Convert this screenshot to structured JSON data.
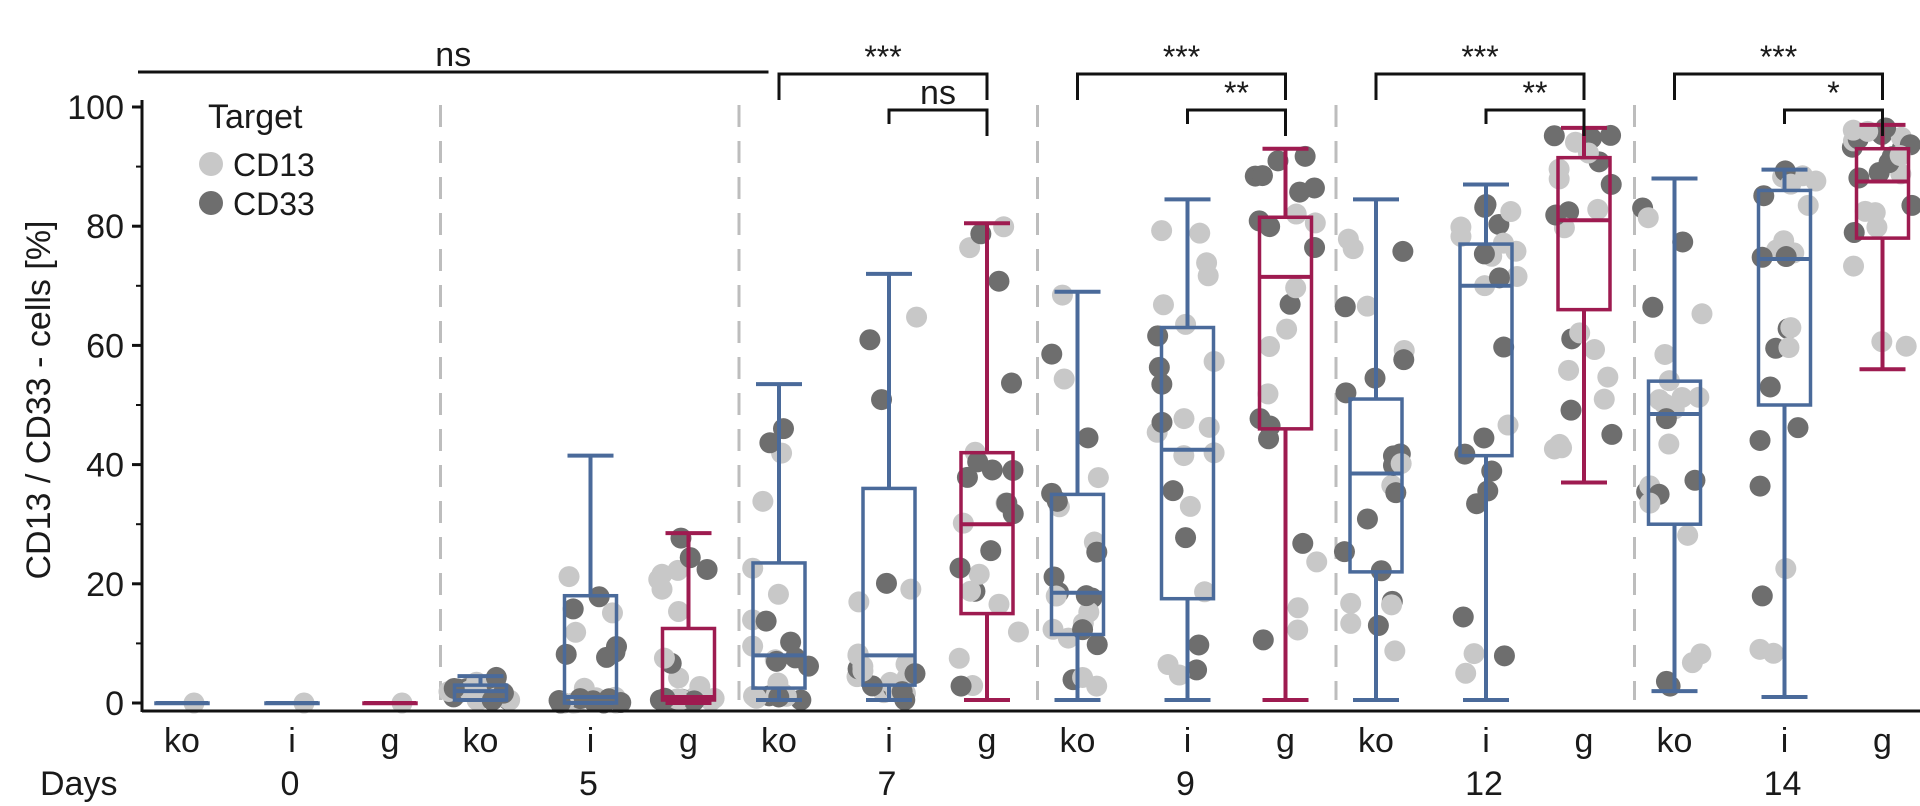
{
  "chart_data": {
    "type": "box",
    "ylabel": "CD13 / CD33 - cells [%]",
    "xgroup_label": "Days",
    "ylim": [
      0,
      100
    ],
    "yticks": [
      0,
      20,
      40,
      60,
      80,
      100
    ],
    "conditions": [
      "ko",
      "i",
      "g"
    ],
    "colors": {
      "ko": "#4a6a9a",
      "i": "#4a6a9a",
      "g": "#9e1b50"
    },
    "legend": {
      "title": "Target",
      "position": "top-left",
      "entries": [
        {
          "label": "CD13",
          "color": "#c8c8c8"
        },
        {
          "label": "CD33",
          "color": "#6e6e6e"
        }
      ]
    },
    "groups": [
      {
        "day": "0",
        "boxes": [
          {
            "cond": "ko",
            "min": 0,
            "q1": 0,
            "median": 0,
            "q3": 0,
            "max": 0
          },
          {
            "cond": "i",
            "min": 0,
            "q1": 0,
            "median": 0,
            "q3": 0,
            "max": 0
          },
          {
            "cond": "g",
            "min": 0,
            "q1": 0,
            "median": 0,
            "q3": 0,
            "max": 0
          }
        ]
      },
      {
        "day": "5",
        "boxes": [
          {
            "cond": "ko",
            "min": 0.5,
            "q1": 0.5,
            "median": 2,
            "q3": 3,
            "max": 4.5
          },
          {
            "cond": "i",
            "min": 0,
            "q1": 0,
            "median": 1,
            "q3": 18,
            "max": 41.5
          },
          {
            "cond": "g",
            "min": 0,
            "q1": 0.5,
            "median": 1,
            "q3": 12.5,
            "max": 28.5
          }
        ]
      },
      {
        "day": "7",
        "boxes": [
          {
            "cond": "ko",
            "min": 0.5,
            "q1": 2.5,
            "median": 8,
            "q3": 23.5,
            "max": 53.5
          },
          {
            "cond": "i",
            "min": 0.5,
            "q1": 3,
            "median": 8,
            "q3": 36,
            "max": 72
          },
          {
            "cond": "g",
            "min": 0.5,
            "q1": 15,
            "median": 30,
            "q3": 42,
            "max": 80.5
          }
        ]
      },
      {
        "day": "9",
        "boxes": [
          {
            "cond": "ko",
            "min": 0.5,
            "q1": 11.5,
            "median": 18.5,
            "q3": 35,
            "max": 69
          },
          {
            "cond": "i",
            "min": 0.5,
            "q1": 17.5,
            "median": 42.5,
            "q3": 63,
            "max": 84.5
          },
          {
            "cond": "g",
            "min": 0.5,
            "q1": 46,
            "median": 71.5,
            "q3": 81.5,
            "max": 93
          }
        ]
      },
      {
        "day": "12",
        "boxes": [
          {
            "cond": "ko",
            "min": 0.5,
            "q1": 22,
            "median": 38.5,
            "q3": 51,
            "max": 84.5
          },
          {
            "cond": "i",
            "min": 0.5,
            "q1": 41.5,
            "median": 70,
            "q3": 77,
            "max": 87
          },
          {
            "cond": "g",
            "min": 37,
            "q1": 66,
            "median": 81,
            "q3": 91.5,
            "max": 96.5
          }
        ]
      },
      {
        "day": "14",
        "boxes": [
          {
            "cond": "ko",
            "min": 2,
            "q1": 30,
            "median": 48.5,
            "q3": 54,
            "max": 88
          },
          {
            "cond": "i",
            "min": 1,
            "q1": 50,
            "median": 74.5,
            "q3": 86,
            "max": 89.5
          },
          {
            "cond": "g",
            "min": 56,
            "q1": 78,
            "median": 87.5,
            "q3": 93,
            "max": 97
          }
        ]
      }
    ],
    "significance": [
      {
        "label": "ns",
        "from": "0:ko",
        "to": "5:g"
      },
      {
        "label": "***",
        "from": "7:ko",
        "to": "7:g"
      },
      {
        "label": "ns",
        "from": "7:i",
        "to": "7:g"
      },
      {
        "label": "***",
        "from": "9:ko",
        "to": "9:g"
      },
      {
        "label": "**",
        "from": "9:i",
        "to": "9:g"
      },
      {
        "label": "***",
        "from": "12:ko",
        "to": "12:g"
      },
      {
        "label": "**",
        "from": "12:i",
        "to": "12:g"
      },
      {
        "label": "***",
        "from": "14:ko",
        "to": "14:g"
      },
      {
        "label": "*",
        "from": "14:i",
        "to": "14:g"
      }
    ]
  }
}
